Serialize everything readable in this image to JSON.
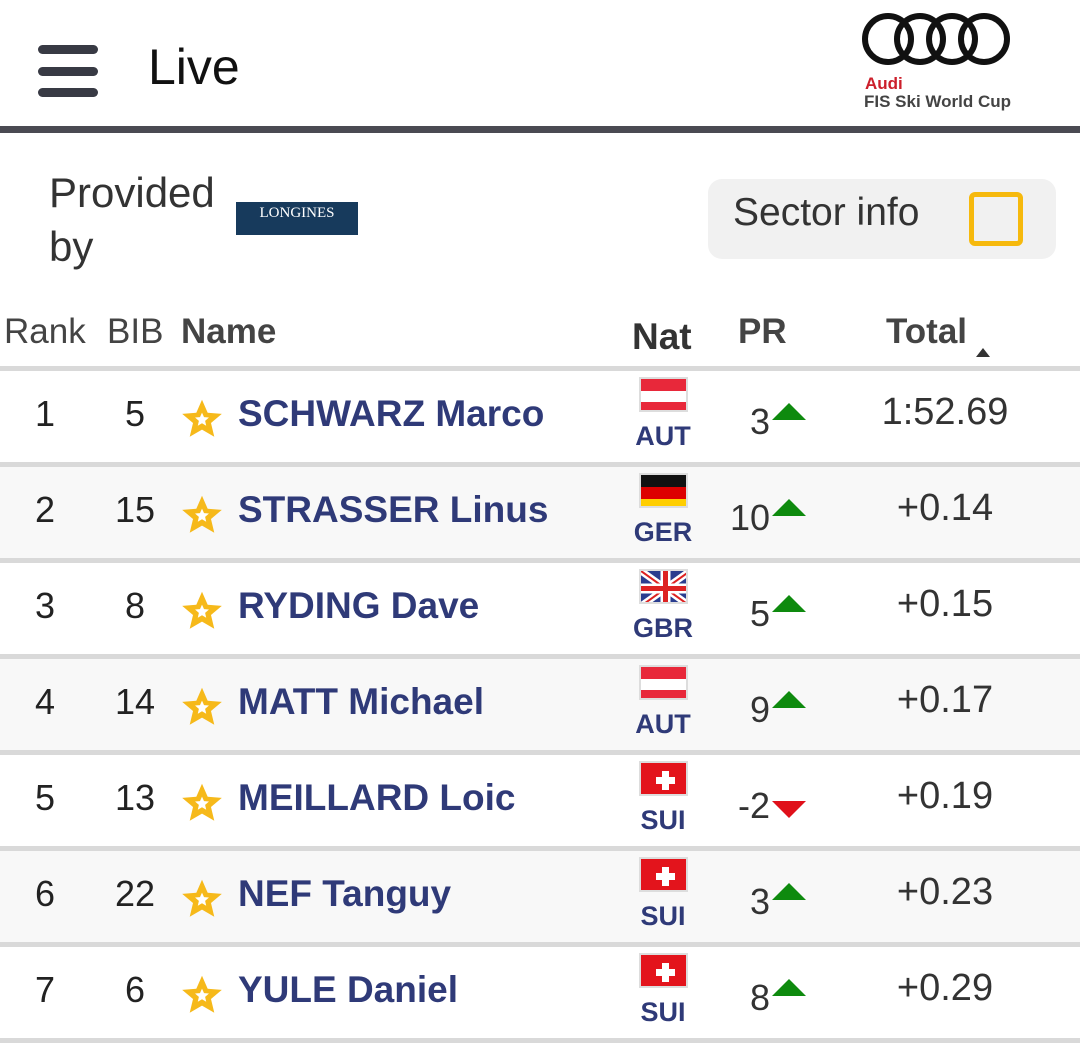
{
  "header": {
    "title": "Live",
    "menu_icon": "hamburger-icon",
    "logo": {
      "brand": "Audi",
      "subtitle": "FIS Ski World Cup"
    }
  },
  "provider": {
    "label": "Provided by",
    "logo_text": "LONGINES"
  },
  "sector_info": {
    "label": "Sector info",
    "checked": false,
    "accent": "#f6b90d"
  },
  "columns": {
    "rank": "Rank",
    "bib": "BIB",
    "name": "Name",
    "nat": "Nat",
    "pr": "PR",
    "total": "Total"
  },
  "rows": [
    {
      "rank": "1",
      "bib": "5",
      "name": "SCHWARZ Marco",
      "nat": "AUT",
      "pr": "3",
      "trend": "up",
      "total": "1:52.69"
    },
    {
      "rank": "2",
      "bib": "15",
      "name": "STRASSER Linus",
      "nat": "GER",
      "pr": "10",
      "trend": "up",
      "total": "+0.14"
    },
    {
      "rank": "3",
      "bib": "8",
      "name": "RYDING Dave",
      "nat": "GBR",
      "pr": "5",
      "trend": "up",
      "total": "+0.15"
    },
    {
      "rank": "4",
      "bib": "14",
      "name": "MATT Michael",
      "nat": "AUT",
      "pr": "9",
      "trend": "up",
      "total": "+0.17"
    },
    {
      "rank": "5",
      "bib": "13",
      "name": "MEILLARD Loic",
      "nat": "SUI",
      "pr": "-2",
      "trend": "down",
      "total": "+0.19"
    },
    {
      "rank": "6",
      "bib": "22",
      "name": "NEF Tanguy",
      "nat": "SUI",
      "pr": "3",
      "trend": "up",
      "total": "+0.23"
    },
    {
      "rank": "7",
      "bib": "6",
      "name": "YULE Daniel",
      "nat": "SUI",
      "pr": "8",
      "trend": "up",
      "total": "+0.29"
    }
  ]
}
